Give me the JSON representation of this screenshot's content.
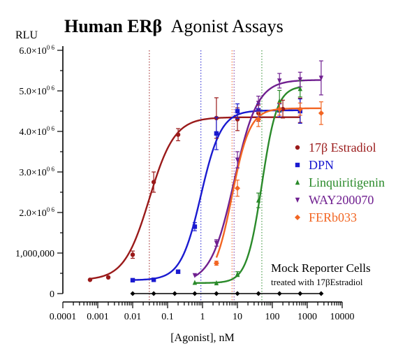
{
  "chart_data": {
    "type": "scatter",
    "title_bold": "Human ERβ",
    "title_rest": "Agonist Assays",
    "xlabel": "[Agonist], nM",
    "ylabel": "RLU",
    "x_scale": "log",
    "xlim": [
      0.0001,
      10000
    ],
    "ylim": [
      0,
      6000000
    ],
    "x_ticks": [
      0.0001,
      0.001,
      0.01,
      0.1,
      1,
      10,
      100,
      1000,
      10000
    ],
    "x_tick_labels": [
      "0.0001",
      "0.001",
      "0.01",
      "0.1",
      "1",
      "10",
      "100",
      "1000",
      "10000"
    ],
    "y_ticks": [
      0,
      1000000,
      2000000,
      3000000,
      4000000,
      5000000,
      6000000
    ],
    "y_tick_labels": [
      {
        "base": "0",
        "exp": ""
      },
      {
        "base": "1,000,000",
        "exp": ""
      },
      {
        "base": "2.0×10",
        "exp": "0 6"
      },
      {
        "base": "3.0×10",
        "exp": "0 6"
      },
      {
        "base": "4.0×10",
        "exp": "0 6"
      },
      {
        "base": "5.0×10",
        "exp": "0 6"
      },
      {
        "base": "6.0×10",
        "exp": "0 6"
      }
    ],
    "grid": false,
    "legend_position": "right",
    "series": [
      {
        "name": "17β Estradiol",
        "color": "#9a1a1a",
        "marker": "circle",
        "ec50": 0.03,
        "points": [
          {
            "x": 0.0006,
            "y": 340000,
            "err": 0
          },
          {
            "x": 0.002,
            "y": 400000,
            "err": 0
          },
          {
            "x": 0.01,
            "y": 960000,
            "err": 90000
          },
          {
            "x": 0.04,
            "y": 2750000,
            "err": 250000
          },
          {
            "x": 0.2,
            "y": 3920000,
            "err": 150000
          },
          {
            "x": 2.5,
            "y": 4330000,
            "err": 500000
          },
          {
            "x": 10,
            "y": 4300000,
            "err": 280000
          },
          {
            "x": 40,
            "y": 4450000,
            "err": 200000
          },
          {
            "x": 200,
            "y": 4550000,
            "err": 220000
          },
          {
            "x": 625,
            "y": 4520000,
            "err": 300000
          }
        ]
      },
      {
        "name": "DPN",
        "color": "#1a1ad0",
        "marker": "square",
        "ec50": 0.9,
        "points": [
          {
            "x": 0.01,
            "y": 330000,
            "err": 0
          },
          {
            "x": 0.04,
            "y": 340000,
            "err": 0
          },
          {
            "x": 0.2,
            "y": 540000,
            "err": 40000
          },
          {
            "x": 0.6,
            "y": 1650000,
            "err": 100000
          },
          {
            "x": 2.5,
            "y": 3950000,
            "err": 400000
          },
          {
            "x": 10,
            "y": 4500000,
            "err": 180000
          },
          {
            "x": 40,
            "y": 4520000,
            "err": 160000
          },
          {
            "x": 160,
            "y": 4520000,
            "err": 160000
          },
          {
            "x": 625,
            "y": 4500000,
            "err": 300000
          }
        ]
      },
      {
        "name": "Linquiritigenin",
        "color": "#2a8a2a",
        "marker": "triangle",
        "ec50": 50,
        "points": [
          {
            "x": 0.6,
            "y": 270000,
            "err": 0
          },
          {
            "x": 2.5,
            "y": 260000,
            "err": 0
          },
          {
            "x": 10,
            "y": 480000,
            "err": 60000
          },
          {
            "x": 40,
            "y": 2300000,
            "err": 180000
          },
          {
            "x": 160,
            "y": 4750000,
            "err": 260000
          },
          {
            "x": 625,
            "y": 5050000,
            "err": 200000
          }
        ]
      },
      {
        "name": "WAY200070",
        "color": "#702090",
        "marker": "triangle-down",
        "ec50": 8,
        "points": [
          {
            "x": 0.6,
            "y": 450000,
            "err": 0
          },
          {
            "x": 2.5,
            "y": 1250000,
            "err": 80000
          },
          {
            "x": 10,
            "y": 3300000,
            "err": 200000
          },
          {
            "x": 40,
            "y": 4700000,
            "err": 170000
          },
          {
            "x": 160,
            "y": 5250000,
            "err": 180000
          },
          {
            "x": 625,
            "y": 5280000,
            "err": 180000
          },
          {
            "x": 2500,
            "y": 5320000,
            "err": 420000
          }
        ]
      },
      {
        "name": "FERb033",
        "color": "#f26522",
        "marker": "diamond",
        "ec50": 7,
        "points": [
          {
            "x": 2.5,
            "y": 750000,
            "err": 50000
          },
          {
            "x": 10,
            "y": 2600000,
            "err": 200000
          },
          {
            "x": 40,
            "y": 4300000,
            "err": 180000
          },
          {
            "x": 160,
            "y": 4550000,
            "err": 150000
          },
          {
            "x": 625,
            "y": 4550000,
            "err": 150000
          },
          {
            "x": 2500,
            "y": 4450000,
            "err": 280000
          }
        ]
      }
    ],
    "fit_params": [
      {
        "bottom": 330000,
        "top": 4350000,
        "ec50": 0.03,
        "hill": 1.2
      },
      {
        "bottom": 330000,
        "top": 4520000,
        "ec50": 0.9,
        "hill": 1.5
      },
      {
        "bottom": 260000,
        "top": 5120000,
        "ec50": 50,
        "hill": 2.0
      },
      {
        "bottom": 260000,
        "top": 5270000,
        "ec50": 8,
        "hill": 1.3
      },
      {
        "bottom": 250000,
        "top": 4570000,
        "ec50": 7,
        "hill": 1.7
      }
    ],
    "mock": {
      "label_line1": "Mock Reporter Cells",
      "label_line2": "treated with 17βEstradiol",
      "y": 0,
      "x": [
        0.01,
        0.04,
        0.16,
        0.6,
        2.5,
        10,
        40,
        160,
        625,
        2500
      ]
    }
  }
}
